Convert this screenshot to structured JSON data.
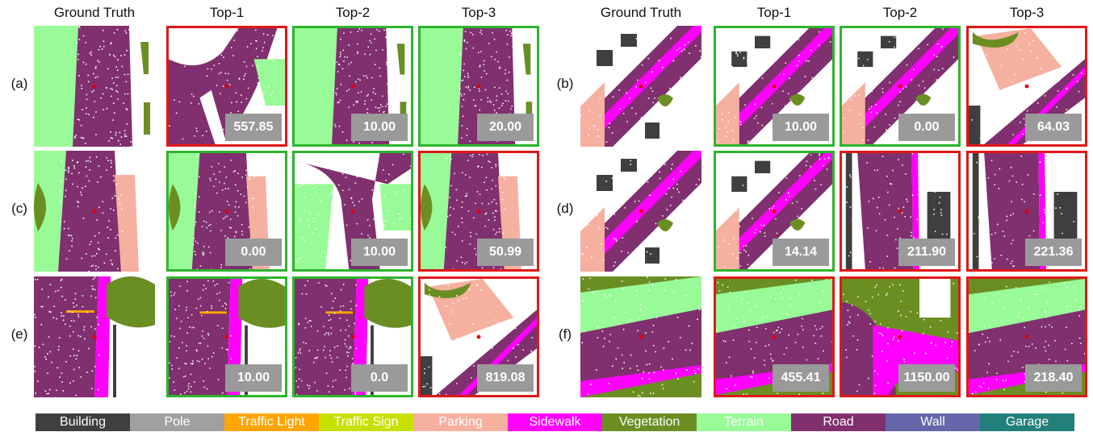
{
  "headers": [
    "Ground Truth",
    "Top-1",
    "Top-2",
    "Top-3"
  ],
  "colors": {
    "correct": "#2db52d",
    "wrong": "#e01818",
    "score_bg": "#9a9a9a"
  },
  "groups": [
    {
      "label": "(a)",
      "scene": "road-vertical",
      "gt": "road-vertical",
      "cands": [
        {
          "score": "557.85",
          "correct": false,
          "scene": "road-curve"
        },
        {
          "score": "10.00",
          "correct": true,
          "scene": "road-vertical"
        },
        {
          "score": "20.00",
          "correct": true,
          "scene": "road-vertical"
        }
      ]
    },
    {
      "label": "(b)",
      "scene": "road-diagonal",
      "cands": [
        {
          "score": "10.00",
          "correct": true,
          "scene": "road-diagonal"
        },
        {
          "score": "0.00",
          "correct": true,
          "scene": "road-diagonal"
        },
        {
          "score": "64.03",
          "correct": false,
          "scene": "road-diagonal-veg"
        }
      ]
    },
    {
      "label": "(c)",
      "scene": "road-vertical-park",
      "cands": [
        {
          "score": "0.00",
          "correct": true,
          "scene": "road-vertical-park"
        },
        {
          "score": "10.00",
          "correct": true,
          "scene": "road-fork"
        },
        {
          "score": "50.99",
          "correct": false,
          "scene": "road-vertical-park"
        }
      ]
    },
    {
      "label": "(d)",
      "scene": "road-diagonal",
      "cands": [
        {
          "score": "14.14",
          "correct": true,
          "scene": "road-diagonal"
        },
        {
          "score": "211.90",
          "correct": false,
          "scene": "road-vertical-bld"
        },
        {
          "score": "221.36",
          "correct": false,
          "scene": "road-vertical-bld"
        }
      ]
    },
    {
      "label": "(e)",
      "scene": "road-side",
      "cands": [
        {
          "score": "10.00",
          "correct": true,
          "scene": "road-side"
        },
        {
          "score": "0.0",
          "correct": true,
          "scene": "road-side"
        },
        {
          "score": "819.08",
          "correct": false,
          "scene": "road-diagonal-veg"
        }
      ]
    },
    {
      "label": "(f)",
      "scene": "road-band",
      "cands": [
        {
          "score": "455.41",
          "correct": false,
          "scene": "road-band"
        },
        {
          "score": "1150.00",
          "correct": false,
          "scene": "road-curve-side"
        },
        {
          "score": "218.40",
          "correct": false,
          "scene": "road-band"
        }
      ]
    }
  ],
  "legend": [
    {
      "label": "Building",
      "color": "#3f3f3f"
    },
    {
      "label": "Pole",
      "color": "#a0a0a0"
    },
    {
      "label": "Traffic Light",
      "color": "#ffa500"
    },
    {
      "label": "Traffic Sign",
      "color": "#c8e000"
    },
    {
      "label": "Parking",
      "color": "#f5b0a0"
    },
    {
      "label": "Sidewalk",
      "color": "#ff00ff"
    },
    {
      "label": "Vegetation",
      "color": "#6b8e23"
    },
    {
      "label": "Terrain",
      "color": "#98fb98"
    },
    {
      "label": "Road",
      "color": "#80306e"
    },
    {
      "label": "Wall",
      "color": "#6666aa"
    },
    {
      "label": "Garage",
      "color": "#227f7a"
    }
  ]
}
